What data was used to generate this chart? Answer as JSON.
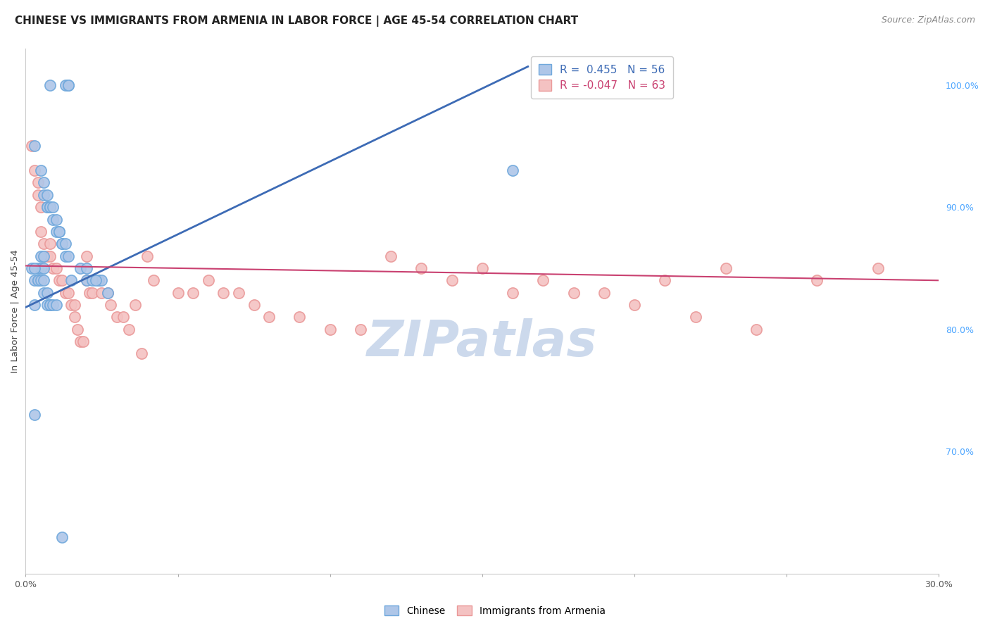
{
  "title": "CHINESE VS IMMIGRANTS FROM ARMENIA IN LABOR FORCE | AGE 45-54 CORRELATION CHART",
  "source": "Source: ZipAtlas.com",
  "ylabel": "In Labor Force | Age 45-54",
  "xlim": [
    0.0,
    0.3
  ],
  "ylim": [
    0.6,
    1.03
  ],
  "xticks": [
    0.0,
    0.05,
    0.1,
    0.15,
    0.2,
    0.25,
    0.3
  ],
  "xticklabels": [
    "0.0%",
    "",
    "",
    "",
    "",
    "",
    "30.0%"
  ],
  "yticks_right": [
    0.7,
    0.8,
    0.9,
    1.0
  ],
  "ytick_right_labels": [
    "70.0%",
    "80.0%",
    "90.0%",
    "100.0%"
  ],
  "legend_text_blue": "R =  0.455   N = 56",
  "legend_text_pink": "R = -0.047   N = 63",
  "watermark": "ZIPatlas",
  "blue_fill_color": "#aec6e8",
  "blue_edge_color": "#6fa8dc",
  "pink_fill_color": "#f4c2c2",
  "pink_edge_color": "#ea9999",
  "blue_line_color": "#3d6bb5",
  "pink_line_color": "#c94070",
  "blue_scatter_x": [
    0.008,
    0.013,
    0.014,
    0.014,
    0.003,
    0.005,
    0.006,
    0.006,
    0.007,
    0.007,
    0.007,
    0.008,
    0.008,
    0.009,
    0.009,
    0.01,
    0.01,
    0.011,
    0.011,
    0.012,
    0.012,
    0.013,
    0.013,
    0.014,
    0.005,
    0.006,
    0.004,
    0.005,
    0.006,
    0.018,
    0.02,
    0.024,
    0.025,
    0.027,
    0.002,
    0.003,
    0.003,
    0.004,
    0.004,
    0.005,
    0.006,
    0.006,
    0.007,
    0.007,
    0.008,
    0.008,
    0.009,
    0.01,
    0.003,
    0.02,
    0.022,
    0.023,
    0.16,
    0.003,
    0.015,
    0.012
  ],
  "blue_scatter_y": [
    1.0,
    1.0,
    1.0,
    1.0,
    0.95,
    0.93,
    0.92,
    0.91,
    0.91,
    0.9,
    0.9,
    0.9,
    0.9,
    0.9,
    0.89,
    0.89,
    0.88,
    0.88,
    0.88,
    0.87,
    0.87,
    0.87,
    0.86,
    0.86,
    0.86,
    0.86,
    0.85,
    0.85,
    0.85,
    0.85,
    0.84,
    0.84,
    0.84,
    0.83,
    0.85,
    0.85,
    0.84,
    0.84,
    0.84,
    0.84,
    0.84,
    0.83,
    0.83,
    0.82,
    0.82,
    0.82,
    0.82,
    0.82,
    0.82,
    0.85,
    0.84,
    0.84,
    0.93,
    0.73,
    0.84,
    0.63
  ],
  "pink_scatter_x": [
    0.002,
    0.003,
    0.004,
    0.004,
    0.005,
    0.005,
    0.006,
    0.006,
    0.007,
    0.008,
    0.008,
    0.009,
    0.01,
    0.011,
    0.012,
    0.013,
    0.014,
    0.015,
    0.016,
    0.016,
    0.017,
    0.018,
    0.019,
    0.02,
    0.02,
    0.021,
    0.022,
    0.024,
    0.025,
    0.027,
    0.028,
    0.03,
    0.032,
    0.034,
    0.036,
    0.038,
    0.04,
    0.042,
    0.05,
    0.055,
    0.06,
    0.065,
    0.07,
    0.075,
    0.08,
    0.09,
    0.1,
    0.11,
    0.12,
    0.13,
    0.14,
    0.16,
    0.18,
    0.2,
    0.22,
    0.24,
    0.26,
    0.28,
    0.15,
    0.17,
    0.19,
    0.21,
    0.23
  ],
  "pink_scatter_y": [
    0.95,
    0.93,
    0.92,
    0.91,
    0.9,
    0.88,
    0.87,
    0.86,
    0.86,
    0.87,
    0.86,
    0.85,
    0.85,
    0.84,
    0.84,
    0.83,
    0.83,
    0.82,
    0.82,
    0.81,
    0.8,
    0.79,
    0.79,
    0.86,
    0.84,
    0.83,
    0.83,
    0.84,
    0.83,
    0.83,
    0.82,
    0.81,
    0.81,
    0.8,
    0.82,
    0.78,
    0.86,
    0.84,
    0.83,
    0.83,
    0.84,
    0.83,
    0.83,
    0.82,
    0.81,
    0.81,
    0.8,
    0.8,
    0.86,
    0.85,
    0.84,
    0.83,
    0.83,
    0.82,
    0.81,
    0.8,
    0.84,
    0.85,
    0.85,
    0.84,
    0.83,
    0.84,
    0.85
  ],
  "blue_trendline_x": [
    0.0,
    0.165
  ],
  "blue_trendline_y": [
    0.818,
    1.015
  ],
  "pink_trendline_x": [
    0.0,
    0.3
  ],
  "pink_trendline_y": [
    0.852,
    0.84
  ],
  "title_fontsize": 11,
  "source_fontsize": 9,
  "watermark_fontsize": 52,
  "watermark_color": "#ccd9ec",
  "background_color": "#ffffff",
  "grid_color": "#d8d8d8"
}
